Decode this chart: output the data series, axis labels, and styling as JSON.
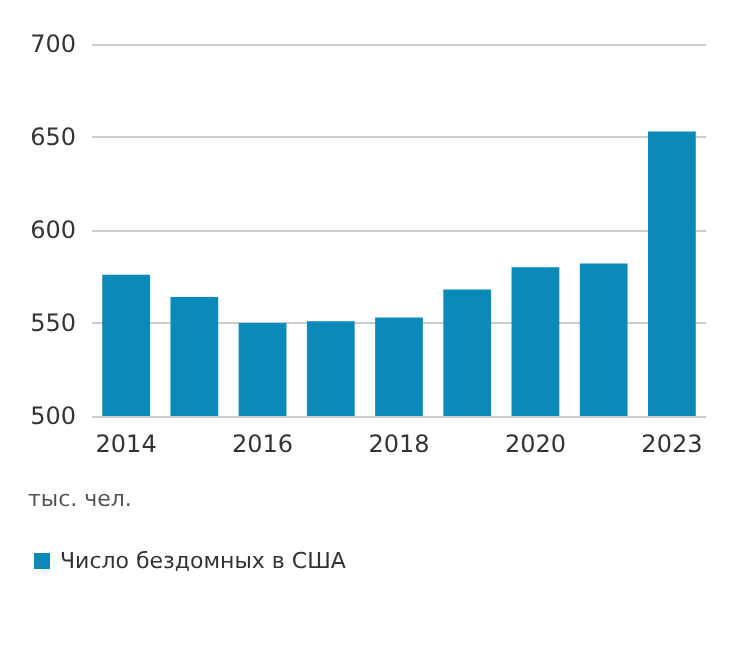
{
  "chart_data": {
    "type": "bar",
    "ylabel": "тыс. чел.",
    "categories": [
      "2014",
      null,
      "2016",
      null,
      "2018",
      null,
      "2020",
      null,
      "2023"
    ],
    "series": [
      {
        "name": "Число бездомных в США",
        "color": "#0a8ab8",
        "values": [
          576,
          564,
          550,
          551,
          553,
          568,
          580,
          582,
          653
        ]
      }
    ],
    "ylim": [
      500,
      700
    ],
    "yticks": [
      500,
      550,
      600,
      650,
      700
    ],
    "grid": "y",
    "legend": "bottom left"
  }
}
